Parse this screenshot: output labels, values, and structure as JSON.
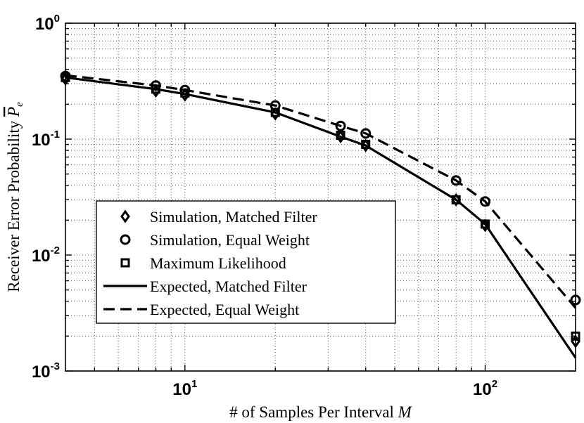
{
  "chart_data": {
    "type": "line",
    "x_scale": "log",
    "y_scale": "log",
    "xlabel_prefix": "# of Samples Per Interval",
    "xlabel_var": "M",
    "ylabel_prefix": "Receiver Error Probability",
    "ylabel_var": "P",
    "ylabel_sub": "e",
    "xlim": [
      4,
      200
    ],
    "ylim": [
      0.001,
      1
    ],
    "x_ticks": [
      {
        "value": 10,
        "base": "10",
        "exp": "1"
      },
      {
        "value": 100,
        "base": "10",
        "exp": "2"
      }
    ],
    "y_ticks": [
      {
        "value": 1,
        "base": "10",
        "exp": "0"
      },
      {
        "value": 0.1,
        "base": "10",
        "exp": "-1"
      },
      {
        "value": 0.01,
        "base": "10",
        "exp": "-2"
      },
      {
        "value": 0.001,
        "base": "10",
        "exp": "-3"
      }
    ],
    "grid": true,
    "legend_position": "lower-left",
    "series": [
      {
        "name": "Simulation, Matched Filter",
        "kind": "marker",
        "marker": "diamond",
        "x": [
          4,
          8,
          10,
          20,
          33,
          40,
          80,
          100,
          200
        ],
        "y": [
          0.33,
          0.26,
          0.24,
          0.165,
          0.105,
          0.088,
          0.03,
          0.018,
          0.0018
        ]
      },
      {
        "name": "Simulation, Equal Weight",
        "kind": "marker",
        "marker": "circle",
        "x": [
          4,
          8,
          10,
          20,
          33,
          40,
          80,
          100,
          200
        ],
        "y": [
          0.35,
          0.29,
          0.265,
          0.195,
          0.13,
          0.112,
          0.044,
          0.029,
          0.0041
        ]
      },
      {
        "name": "Maximum Likelihood",
        "kind": "marker",
        "marker": "square",
        "x": [
          4,
          8,
          10,
          20,
          33,
          40,
          80,
          100,
          200
        ],
        "y": [
          0.34,
          0.27,
          0.25,
          0.17,
          0.108,
          0.09,
          0.03,
          0.0185,
          0.002
        ]
      },
      {
        "name": "Expected, Matched Filter",
        "kind": "line",
        "dash": "solid",
        "x": [
          4,
          8,
          10,
          20,
          33,
          40,
          80,
          100,
          200
        ],
        "y": [
          0.34,
          0.27,
          0.245,
          0.17,
          0.105,
          0.088,
          0.03,
          0.0185,
          0.0013
        ]
      },
      {
        "name": "Expected, Equal Weight",
        "kind": "line",
        "dash": "dashed",
        "x": [
          4,
          8,
          10,
          20,
          33,
          40,
          80,
          100,
          200
        ],
        "y": [
          0.355,
          0.29,
          0.265,
          0.195,
          0.13,
          0.112,
          0.044,
          0.029,
          0.0035
        ]
      }
    ]
  }
}
